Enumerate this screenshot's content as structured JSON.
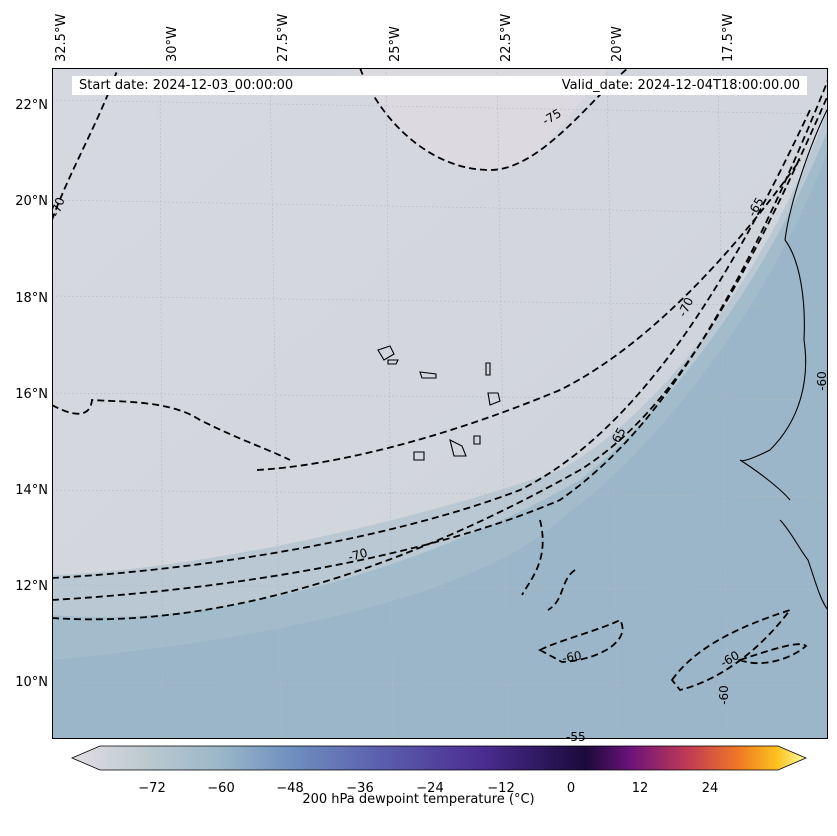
{
  "header": {
    "start_date": "Start date: 2024-12-03_00:00:00",
    "valid_date": "Valid_date: 2024-12-04T18:00:00.00"
  },
  "map": {
    "longitude_labels": [
      "32.5°W",
      "30°W",
      "27.5°W",
      "25°W",
      "22.5°W",
      "20°W",
      "17.5°W"
    ],
    "latitude_labels": [
      "22°N",
      "20°N",
      "18°N",
      "16°N",
      "14°N",
      "12°N",
      "10°N"
    ],
    "contour_labels": [
      "-75",
      "-70",
      "-70",
      "-70",
      "-65",
      "-65",
      "-60",
      "-60",
      "-60",
      "-60",
      "-55"
    ],
    "colors": {
      "ocean_dry": "#dcdce2",
      "field_mid": "#c9d3da",
      "field_moist": "#9bb6c8",
      "coast": "#000000",
      "contour": "#000000"
    }
  },
  "colorbar": {
    "title": "200 hPa dewpoint temperature (°C)",
    "ticks": [
      "−72",
      "−60",
      "−48",
      "−36",
      "−24",
      "−12",
      "0",
      "12",
      "24"
    ],
    "colors": [
      "#e2dde3",
      "#bcc9cf",
      "#9bb8c9",
      "#6f8fbf",
      "#5b5fae",
      "#4a2c90",
      "#1a0a3a",
      "#6b137a",
      "#c23b54",
      "#f07b23",
      "#fcc11e",
      "#fbfd9f"
    ]
  }
}
